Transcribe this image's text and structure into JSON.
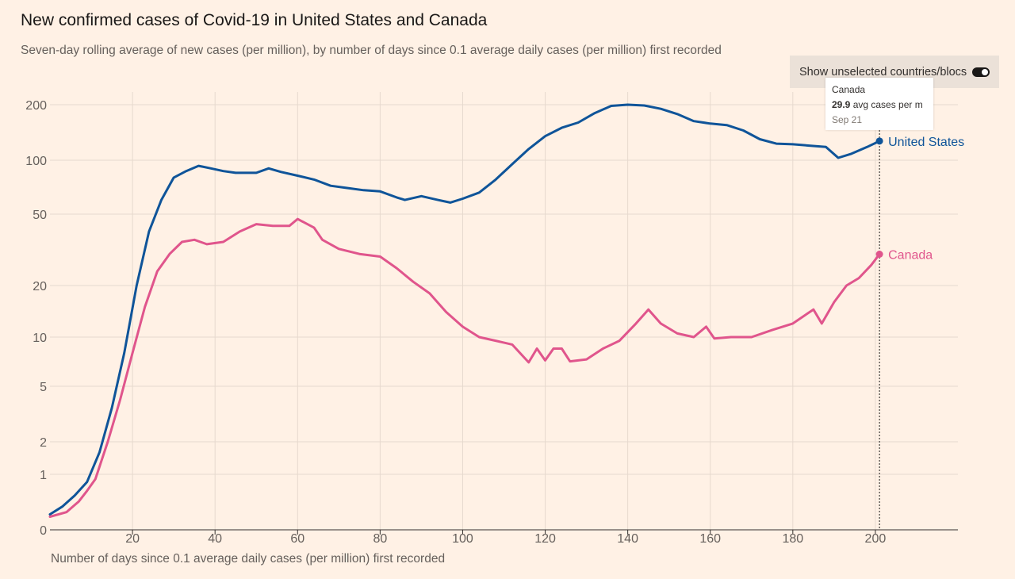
{
  "header": {
    "title": "New confirmed cases of Covid-19 in United States and Canada",
    "subtitle": "Seven-day rolling average of new cases (per million), by number of days since 0.1 average daily cases (per million) first recorded"
  },
  "toggle": {
    "label": "Show unselected countries/blocs",
    "state": "on"
  },
  "tooltip": {
    "country": "Canada",
    "value": "29.9",
    "value_suffix": " avg cases per m",
    "date": "Sep 21"
  },
  "colors": {
    "background": "#fff1e5",
    "united_states": "#0f5499",
    "canada": "#e0558c",
    "grid": "#e6d9ce",
    "axis": "#33302e"
  },
  "chart_data": {
    "type": "line",
    "title": "New confirmed cases of Covid-19 in United States and Canada",
    "subtitle": "Seven-day rolling average of new cases (per million), by number of days since 0.1 average daily cases (per million) first recorded",
    "xlabel": "Number of days since 0.1 average daily cases (per million) first recorded",
    "ylabel": "",
    "x_ticks": [
      20,
      40,
      60,
      80,
      100,
      120,
      140,
      160,
      180,
      200
    ],
    "y_ticks": [
      0,
      1,
      2,
      5,
      10,
      20,
      50,
      100,
      200
    ],
    "y_scale": "log",
    "xlim": [
      0,
      220
    ],
    "grid": true,
    "legend": "inline labels at line ends",
    "series": [
      {
        "name": "United States",
        "color": "#0f5499",
        "points": [
          [
            0,
            0.1
          ],
          [
            3,
            0.18
          ],
          [
            6,
            0.35
          ],
          [
            9,
            0.7
          ],
          [
            12,
            1.6
          ],
          [
            15,
            3.5
          ],
          [
            18,
            8
          ],
          [
            21,
            20
          ],
          [
            24,
            40
          ],
          [
            27,
            60
          ],
          [
            30,
            80
          ],
          [
            33,
            87
          ],
          [
            36,
            93
          ],
          [
            39,
            90
          ],
          [
            42,
            87
          ],
          [
            45,
            85
          ],
          [
            50,
            85
          ],
          [
            53,
            90
          ],
          [
            56,
            86
          ],
          [
            60,
            82
          ],
          [
            64,
            78
          ],
          [
            68,
            72
          ],
          [
            72,
            70
          ],
          [
            76,
            68
          ],
          [
            80,
            67
          ],
          [
            84,
            62
          ],
          [
            86,
            60
          ],
          [
            90,
            63
          ],
          [
            94,
            60
          ],
          [
            97,
            58
          ],
          [
            100,
            61
          ],
          [
            104,
            66
          ],
          [
            108,
            78
          ],
          [
            112,
            95
          ],
          [
            116,
            115
          ],
          [
            120,
            135
          ],
          [
            124,
            150
          ],
          [
            128,
            160
          ],
          [
            132,
            180
          ],
          [
            136,
            197
          ],
          [
            140,
            200
          ],
          [
            144,
            198
          ],
          [
            148,
            190
          ],
          [
            152,
            178
          ],
          [
            156,
            163
          ],
          [
            160,
            158
          ],
          [
            164,
            155
          ],
          [
            168,
            145
          ],
          [
            172,
            130
          ],
          [
            176,
            123
          ],
          [
            180,
            122
          ],
          [
            184,
            120
          ],
          [
            188,
            118
          ],
          [
            191,
            103
          ],
          [
            194,
            108
          ],
          [
            198,
            118
          ],
          [
            201,
            127
          ]
        ]
      },
      {
        "name": "Canada",
        "color": "#e0558c",
        "points": [
          [
            0,
            0.08
          ],
          [
            4,
            0.12
          ],
          [
            7,
            0.25
          ],
          [
            9,
            0.45
          ],
          [
            11,
            0.8
          ],
          [
            14,
            2
          ],
          [
            17,
            4
          ],
          [
            20,
            8
          ],
          [
            23,
            15
          ],
          [
            26,
            24
          ],
          [
            29,
            30
          ],
          [
            32,
            35
          ],
          [
            35,
            36
          ],
          [
            38,
            34
          ],
          [
            42,
            35
          ],
          [
            46,
            40
          ],
          [
            50,
            44
          ],
          [
            54,
            43
          ],
          [
            58,
            43
          ],
          [
            60,
            47
          ],
          [
            64,
            42
          ],
          [
            66,
            36
          ],
          [
            70,
            32
          ],
          [
            75,
            30
          ],
          [
            80,
            29
          ],
          [
            84,
            25
          ],
          [
            88,
            21
          ],
          [
            92,
            18
          ],
          [
            96,
            14
          ],
          [
            100,
            11.5
          ],
          [
            104,
            10
          ],
          [
            108,
            9.5
          ],
          [
            112,
            9
          ],
          [
            116,
            7
          ],
          [
            118,
            8.5
          ],
          [
            120,
            7.2
          ],
          [
            122,
            8.5
          ],
          [
            124,
            8.5
          ],
          [
            126,
            7.1
          ],
          [
            130,
            7.3
          ],
          [
            134,
            8.5
          ],
          [
            138,
            9.5
          ],
          [
            142,
            12
          ],
          [
            145,
            14.5
          ],
          [
            148,
            12
          ],
          [
            152,
            10.5
          ],
          [
            156,
            10
          ],
          [
            159,
            11.5
          ],
          [
            161,
            9.8
          ],
          [
            165,
            10
          ],
          [
            170,
            10
          ],
          [
            175,
            11
          ],
          [
            180,
            12
          ],
          [
            185,
            14.5
          ],
          [
            187,
            12
          ],
          [
            190,
            16
          ],
          [
            193,
            20
          ],
          [
            196,
            22
          ],
          [
            199,
            26
          ],
          [
            201,
            29.9
          ]
        ]
      }
    ],
    "end_labels": [
      {
        "series": "United States",
        "x": 201,
        "y": 127
      },
      {
        "series": "Canada",
        "x": 201,
        "y": 29.9
      }
    ],
    "hover_x": 201
  }
}
